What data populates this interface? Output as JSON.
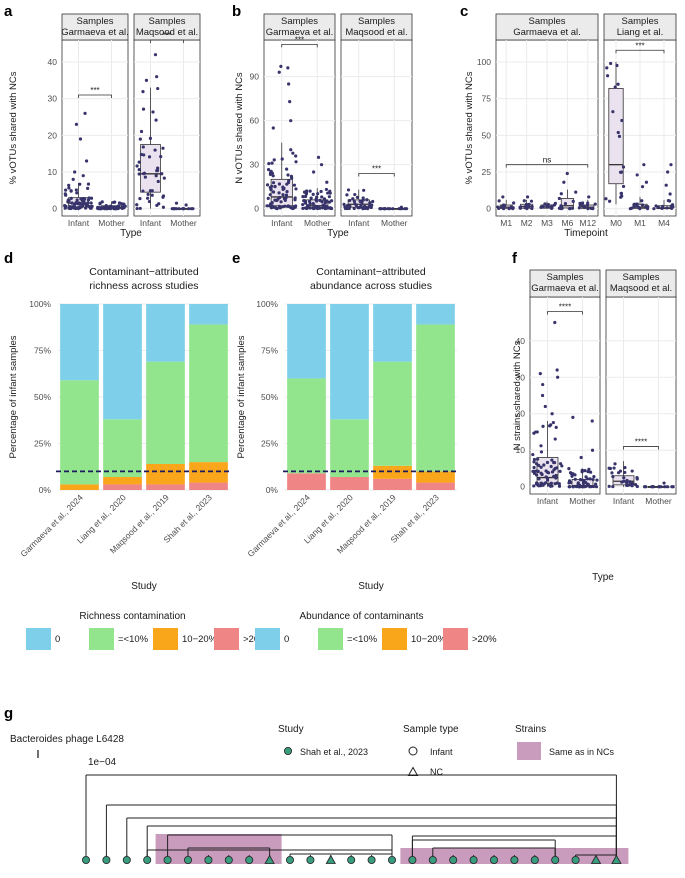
{
  "panel_letters": [
    "a",
    "b",
    "c",
    "d",
    "e",
    "f",
    "g"
  ],
  "colors": {
    "point": "#37336b",
    "box_fill": "#ebe2ef",
    "strip": "#ebebeb",
    "grid": "#ebebeb",
    "zero": "#7ecfe9",
    "under10": "#92e58c",
    "ten20": "#f9a61a",
    "over20": "#f08585",
    "dashed": "#1c1c5c",
    "tip": "#3a9c7e",
    "strain_bar": "#c99bbd"
  },
  "chart_data": [
    {
      "id": "a",
      "type": "box",
      "ylabel": "% vOTUs shared with NCs",
      "xlabel": "Type",
      "ylim": [
        -2,
        46
      ],
      "yticks": [
        0,
        10,
        20,
        30,
        40
      ],
      "facets": [
        {
          "strip": [
            "Samples",
            "Garmaeva et al."
          ],
          "groups": [
            {
              "label": "Infant",
              "q1": 0.4,
              "med": 1.5,
              "q3": 3,
              "wlo": 0,
              "whi": 7,
              "n": 70,
              "out": [
                8,
                9,
                10,
                13,
                19,
                23,
                26
              ]
            },
            {
              "label": "Mother",
              "q1": 0,
              "med": 0.3,
              "q3": 0.8,
              "wlo": 0,
              "whi": 2,
              "n": 55,
              "out": []
            }
          ],
          "sig": {
            "text": "***",
            "y": 31
          }
        },
        {
          "strip": [
            "Samples",
            "Maqsood et al."
          ],
          "groups": [
            {
              "label": "Infant",
              "q1": 4.5,
              "med": 9.5,
              "q3": 17.5,
              "wlo": 0,
              "whi": 33,
              "n": 45,
              "out": [
                35,
                36,
                42
              ]
            },
            {
              "label": "Mother",
              "q1": 0,
              "med": 0,
              "q3": 0,
              "wlo": 0,
              "whi": 0,
              "n": 12,
              "out": [
                1,
                1.5
              ]
            }
          ],
          "sig": {
            "text": "***",
            "y": 46
          }
        }
      ]
    },
    {
      "id": "b",
      "type": "box",
      "ylabel": "N vOTUs shared with NCs",
      "xlabel": "Type",
      "ylim": [
        -5,
        115
      ],
      "yticks": [
        0,
        30,
        60,
        90
      ],
      "facets": [
        {
          "strip": [
            "Samples",
            "Garmaeva et al."
          ],
          "groups": [
            {
              "label": "Infant",
              "q1": 2,
              "med": 8,
              "q3": 20,
              "wlo": 0,
              "whi": 45,
              "n": 80,
              "out": [
                55,
                60,
                73,
                85,
                93,
                96,
                97
              ]
            },
            {
              "label": "Mother",
              "q1": 0.5,
              "med": 2,
              "q3": 6,
              "wlo": 0,
              "whi": 14,
              "n": 65,
              "out": [
                18,
                25,
                30,
                35
              ]
            }
          ],
          "sig": {
            "text": "***",
            "y": 112
          }
        },
        {
          "strip": [
            "Samples",
            "Maqsood et al."
          ],
          "groups": [
            {
              "label": "Infant",
              "q1": 1,
              "med": 3,
              "q3": 6,
              "wlo": 0,
              "whi": 13,
              "n": 45,
              "out": []
            },
            {
              "label": "Mother",
              "q1": 0,
              "med": 0,
              "q3": 0,
              "wlo": 0,
              "whi": 0,
              "n": 15,
              "out": [
                1
              ]
            }
          ],
          "sig": {
            "text": "***",
            "y": 24
          }
        }
      ]
    },
    {
      "id": "c",
      "type": "box",
      "ylabel": "% vOTUs shared with NCs",
      "xlabel": "Timepoint",
      "ylim": [
        -5,
        115
      ],
      "yticks": [
        0,
        25,
        50,
        75,
        100
      ],
      "facets": [
        {
          "strip": [
            "Samples",
            "Garmaeva et al."
          ],
          "groups": [
            {
              "label": "M1",
              "q1": 0,
              "med": 1,
              "q3": 2.5,
              "wlo": 0,
              "whi": 6,
              "n": 14,
              "out": [
                8
              ]
            },
            {
              "label": "M2",
              "q1": 0.3,
              "med": 1.5,
              "q3": 3,
              "wlo": 0,
              "whi": 6,
              "n": 16,
              "out": [
                8
              ]
            },
            {
              "label": "M3",
              "q1": 0.3,
              "med": 1.2,
              "q3": 2.5,
              "wlo": 0,
              "whi": 5,
              "n": 12,
              "out": []
            },
            {
              "label": "M6",
              "q1": 0.5,
              "med": 2,
              "q3": 7,
              "wlo": 0,
              "whi": 13,
              "n": 16,
              "out": [
                18,
                24
              ]
            },
            {
              "label": "M12",
              "q1": 0,
              "med": 1,
              "q3": 2.5,
              "wlo": 0,
              "whi": 6,
              "n": 14,
              "out": [
                8
              ]
            }
          ],
          "sig": {
            "text": "ns",
            "y": 30,
            "from": 0,
            "to": 4
          }
        },
        {
          "strip": [
            "Samples",
            "Liang et al."
          ],
          "groups": [
            {
              "label": "M0",
              "q1": 17,
              "med": 30,
              "q3": 82,
              "wlo": 3,
              "whi": 100,
              "n": 20,
              "out": []
            },
            {
              "label": "M1",
              "q1": 0,
              "med": 1,
              "q3": 3,
              "wlo": 0,
              "whi": 8,
              "n": 14,
              "out": [
                15,
                18,
                23,
                30
              ]
            },
            {
              "label": "M4",
              "q1": 0,
              "med": 0.5,
              "q3": 2,
              "wlo": 0,
              "whi": 6,
              "n": 12,
              "out": [
                10,
                16,
                25,
                30
              ]
            }
          ],
          "sig": {
            "text": "***",
            "y": 108,
            "from": 0,
            "to": 2
          }
        }
      ]
    },
    {
      "id": "d",
      "type": "stacked-bar",
      "title": [
        "Contaminant−attributed",
        "richness across studies"
      ],
      "ylabel": "Percentage of infant samples",
      "xlabel": "Study",
      "categories": [
        "Garmaeva et al., 2024",
        "Liang et al., 2020",
        "Maqsood et al., 2019",
        "Shah et al., 2023"
      ],
      "yticks": [
        "0%",
        "25%",
        "50%",
        "75%",
        "100%"
      ],
      "series": [
        {
          "name": ">20%",
          "color": "#f08585",
          "values": [
            0,
            3,
            3,
            4
          ]
        },
        {
          "name": "10−20%",
          "color": "#f9a61a",
          "values": [
            3,
            4,
            11,
            11
          ]
        },
        {
          "name": "=<10%",
          "color": "#92e58c",
          "values": [
            56,
            31,
            55,
            74
          ]
        },
        {
          "name": "0",
          "color": "#7ecfe9",
          "values": [
            41,
            62,
            31,
            11
          ]
        }
      ],
      "dashed_line": 10,
      "legend": {
        "title": "Richness contamination",
        "items": [
          "0",
          "=<10%",
          "10−20%",
          ">20%"
        ]
      }
    },
    {
      "id": "e",
      "type": "stacked-bar",
      "title": [
        "Contaminant−attributed",
        "abundance across studies"
      ],
      "ylabel": "Percentage of infant samples",
      "xlabel": "Study",
      "categories": [
        "Garmaeva et al., 2024",
        "Liang et al., 2020",
        "Maqsood et al., 2019",
        "Shah et al., 2023"
      ],
      "yticks": [
        "0%",
        "25%",
        "50%",
        "75%",
        "100%"
      ],
      "series": [
        {
          "name": ">20%",
          "color": "#f08585",
          "values": [
            9,
            7,
            6,
            4
          ]
        },
        {
          "name": "10−20%",
          "color": "#f9a61a",
          "values": [
            0,
            0,
            7,
            6
          ]
        },
        {
          "name": "=<10%",
          "color": "#92e58c",
          "values": [
            51,
            31,
            56,
            79
          ]
        },
        {
          "name": "0",
          "color": "#7ecfe9",
          "values": [
            40,
            62,
            31,
            11
          ]
        }
      ],
      "dashed_line": 10,
      "legend": {
        "title": "Abundance of contaminants",
        "items": [
          "0",
          "=<10%",
          "10−20%",
          ">20%"
        ]
      }
    },
    {
      "id": "f",
      "type": "box",
      "ylabel": "N strains shared with NCs",
      "xlabel": "Type",
      "ylim": [
        -2,
        52
      ],
      "yticks": [
        0,
        10,
        20,
        30,
        40
      ],
      "facets": [
        {
          "strip": [
            "Samples",
            "Garmaeva et al."
          ],
          "groups": [
            {
              "label": "Infant",
              "q1": 1,
              "med": 2.5,
              "q3": 8,
              "wlo": 0,
              "whi": 18,
              "n": 70,
              "out": [
                20,
                22,
                25,
                28,
                30,
                31,
                32,
                45
              ]
            },
            {
              "label": "Mother",
              "q1": 0,
              "med": 0.3,
              "q3": 2,
              "wlo": 0,
              "whi": 5,
              "n": 50,
              "out": [
                8,
                10,
                18,
                19
              ]
            }
          ],
          "sig": {
            "text": "****",
            "y": 48
          }
        },
        {
          "strip": [
            "Samples",
            "Maqsood et al."
          ],
          "groups": [
            {
              "label": "Infant",
              "q1": 0.5,
              "med": 1.5,
              "q3": 3,
              "wlo": 0,
              "whi": 7,
              "n": 30,
              "out": []
            },
            {
              "label": "Mother",
              "q1": 0,
              "med": 0,
              "q3": 0,
              "wlo": 0,
              "whi": 0,
              "n": 12,
              "out": [
                1
              ]
            }
          ],
          "sig": {
            "text": "****",
            "y": 11
          }
        }
      ]
    },
    {
      "id": "g",
      "type": "tree",
      "title": "Bacteroides phage L6428",
      "scale_label": "1e−04",
      "tips": [
        "c",
        "c",
        "c",
        "c",
        "c",
        "c",
        "c",
        "c",
        "c",
        "t",
        "c",
        "c",
        "t",
        "c",
        "c",
        "c",
        "c",
        "c",
        "c",
        "c",
        "c",
        "c",
        "c",
        "c",
        "c",
        "t",
        "t"
      ],
      "strain_ranges": [
        [
          4,
          9
        ],
        [
          16,
          26
        ]
      ],
      "legend": {
        "study_title": "Study",
        "study_item": "Shah et al., 2023",
        "sample_title": "Sample type",
        "sample_items": [
          "Infant",
          "NC"
        ],
        "strain_title": "Strains",
        "strain_item": "Same as in NCs"
      }
    }
  ]
}
